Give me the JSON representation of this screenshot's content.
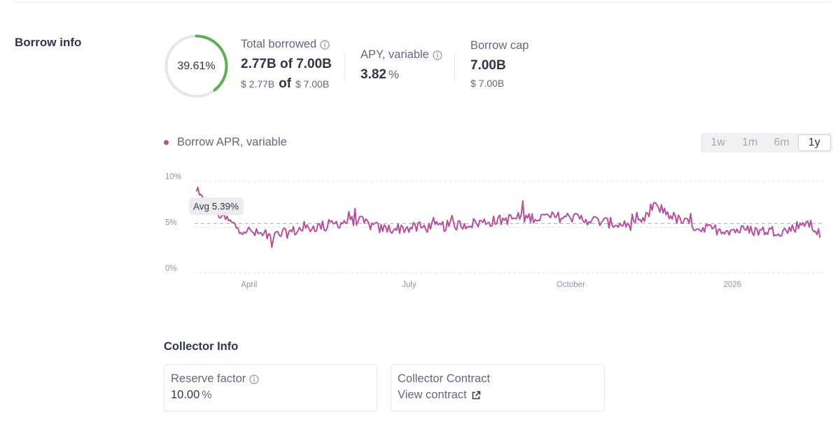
{
  "section_title": "Borrow info",
  "utilization": {
    "label": "39.61%",
    "fraction": 0.3961,
    "color": "#5fad56"
  },
  "total_borrowed": {
    "label": "Total borrowed",
    "amount": "2.77B",
    "of": "of",
    "cap": "7.00B",
    "usd_amount": "$ 2.77B",
    "usd_cap": "$ 7.00B"
  },
  "apy": {
    "label": "APY, variable",
    "value": "3.82",
    "unit": "%"
  },
  "borrow_cap": {
    "label": "Borrow cap",
    "value": "7.00B",
    "usd": "$ 7.00B"
  },
  "chart_legend": "Borrow APR, variable",
  "time_ranges": [
    "1w",
    "1m",
    "6m",
    "1y"
  ],
  "active_range": "1y",
  "colors": {
    "line": "#b6509e",
    "text": "#303549",
    "muted": "#62677b"
  },
  "chart_data": {
    "type": "line",
    "series": [
      {
        "name": "Borrow APR, variable"
      }
    ],
    "y_ticks": [
      "10%",
      "5%",
      "0%"
    ],
    "ylim": [
      0,
      10
    ],
    "x_ticks": [
      "April",
      "July",
      "October",
      "2026"
    ],
    "average": 5.39,
    "average_label": "Avg 5.39%",
    "grid": true,
    "x": [
      "2025-03-02",
      "2025-03-10",
      "2025-03-16",
      "2025-03-25",
      "2025-04-05",
      "2025-04-15",
      "2025-05-01",
      "2025-05-15",
      "2025-06-01",
      "2025-06-15",
      "2025-07-01",
      "2025-07-15",
      "2025-08-01",
      "2025-08-15",
      "2025-09-01",
      "2025-09-15",
      "2025-10-01",
      "2025-10-15",
      "2025-11-01",
      "2025-11-10",
      "2025-11-18",
      "2025-12-01",
      "2025-12-15",
      "2026-01-01",
      "2026-01-15",
      "2026-02-01",
      "2026-02-12",
      "2026-02-20"
    ],
    "values": [
      8.7,
      6.9,
      6.3,
      5.0,
      4.3,
      4.0,
      4.8,
      5.2,
      5.8,
      4.8,
      4.9,
      5.0,
      5.3,
      5.6,
      6.0,
      6.1,
      6.1,
      5.7,
      5.2,
      5.3,
      7.4,
      5.8,
      4.8,
      4.7,
      4.6,
      4.6,
      5.6,
      4.2
    ]
  },
  "collector": {
    "title": "Collector Info",
    "reserve_factor_label": "Reserve factor",
    "reserve_factor_value": "10.00",
    "reserve_factor_unit": "%",
    "contract_label": "Collector Contract",
    "contract_link": "View contract"
  }
}
